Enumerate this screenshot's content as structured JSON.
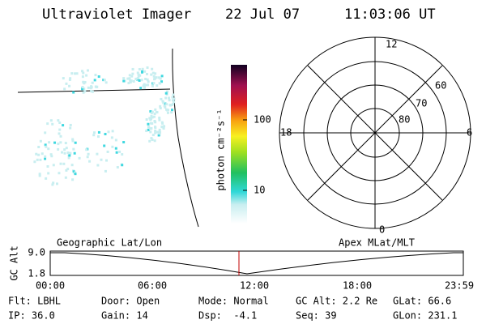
{
  "header": {
    "title": "Ultraviolet Imager",
    "date": "22 Jul 07",
    "time": "11:03:06 UT"
  },
  "colorbar": {
    "label": "photon cm⁻²s⁻¹",
    "ticks": [
      "100",
      "10"
    ]
  },
  "polar": {
    "mlt_labels": [
      "12",
      "6",
      "0",
      "18"
    ],
    "mlat_labels": [
      "60",
      "70",
      "80"
    ]
  },
  "altitude_plot": {
    "axis_label": "GC Alt",
    "y_labels": [
      "9.0",
      "1.8"
    ],
    "left_label": "Geographic Lat/Lon",
    "right_label": "Apex MLat/MLT",
    "time_labels": [
      "00:00",
      "06:00",
      "12:00",
      "18:00",
      "23:59"
    ]
  },
  "status": {
    "rows": [
      [
        "Flt: LBHL",
        "Door: Open",
        "Mode: Normal",
        "GC Alt: 2.2 Re",
        "GLat: 66.6"
      ],
      [
        "IP: 36.0",
        "Gain: 14",
        "Dsp:  -4.1",
        "Seq: 39",
        "GLon: 231.1"
      ]
    ]
  }
}
